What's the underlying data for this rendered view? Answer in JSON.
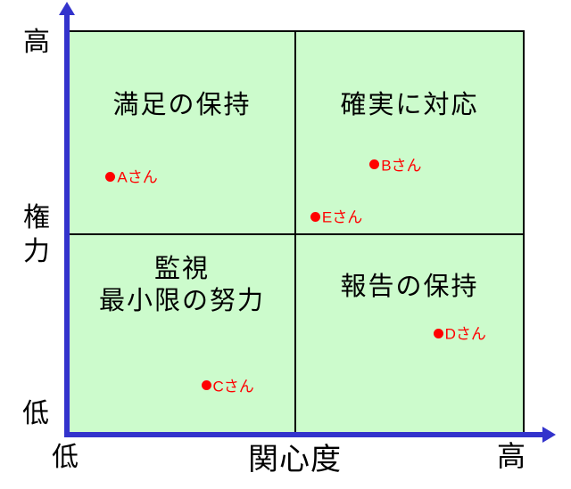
{
  "colors": {
    "background": "#ffffff",
    "plot_background": "#ccfbcc",
    "axis": "#3333cc",
    "grid_line": "#000000",
    "point": "#ff0000",
    "text": "#000000"
  },
  "axes": {
    "y_title_char1": "権",
    "y_title_char2": "力",
    "y_high": "高",
    "y_low": "低",
    "x_title": "関心度",
    "x_low": "低",
    "x_high": "高"
  },
  "quadrants": {
    "top_left": "満足の保持",
    "top_right": "確実に対応",
    "bottom_left_line1": "監視",
    "bottom_left_line2": "最小限の努力",
    "bottom_right": "報告の保持"
  },
  "chart_data": {
    "type": "scatter",
    "title": "",
    "xlabel": "関心度",
    "ylabel": "権力",
    "x_axis_ends": {
      "low": "低",
      "high": "高"
    },
    "y_axis_ends": {
      "low": "低",
      "high": "高"
    },
    "xlim": [
      0,
      1
    ],
    "ylim": [
      0,
      1
    ],
    "grid": "2x2 quadrants",
    "legend": "none",
    "quadrant_labels": {
      "top_left": "満足の保持",
      "top_right": "確実に対応",
      "bottom_left": "監視 最小限の努力",
      "bottom_right": "報告の保持"
    },
    "points": [
      {
        "label": "Aさん",
        "x": 0.09,
        "y": 0.64
      },
      {
        "label": "Bさん",
        "x": 0.67,
        "y": 0.67
      },
      {
        "label": "Eさん",
        "x": 0.54,
        "y": 0.54
      },
      {
        "label": "Cさん",
        "x": 0.3,
        "y": 0.12
      },
      {
        "label": "Dさん",
        "x": 0.81,
        "y": 0.25
      }
    ]
  }
}
